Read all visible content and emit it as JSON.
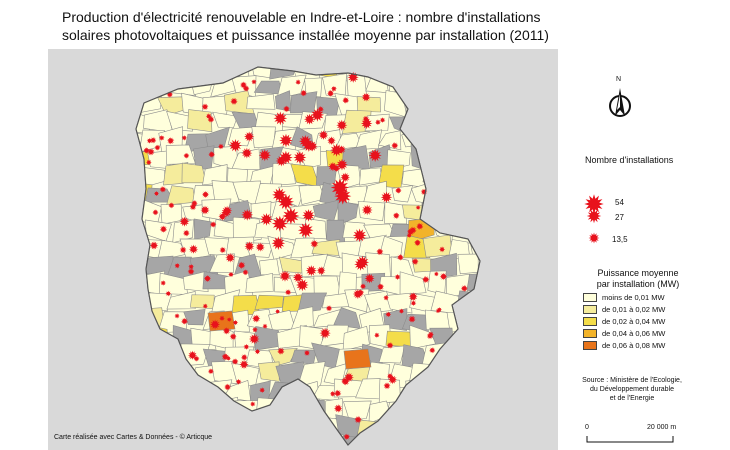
{
  "title": {
    "line1": "Production d'électricité renouvelable en Indre-et-Loire : nombre d'installations",
    "line2": "solaires photovoltaiques et puissance installée moyenne par installation (2011)"
  },
  "credit": "Carte réalisée avec Cartes & Données - © Articque",
  "north_label": "N",
  "legend_count": {
    "title": "Nombre d'installations",
    "items": [
      {
        "label": "54",
        "value": 54
      },
      {
        "label": "27",
        "value": 27
      },
      {
        "label": "13,5",
        "value": 13.5
      }
    ],
    "symbol_color": "#e8121c"
  },
  "legend_power": {
    "title_line1": "Puissance moyenne",
    "title_line2": "par installation (MW)",
    "classes": [
      {
        "label": "moins de 0,01 MW",
        "color": "#ffffdc"
      },
      {
        "label": "de 0,01 à 0,02 MW",
        "color": "#f5ec9c"
      },
      {
        "label": "de 0,02 à 0,04 MW",
        "color": "#f4dd4a"
      },
      {
        "label": "de 0,04 à 0,06 MW",
        "color": "#f2b32a"
      },
      {
        "label": "de 0,06 à 0,08 MW",
        "color": "#e8741b"
      }
    ],
    "no_data_color": "#a6a6a6"
  },
  "source": {
    "line1": "Source : Ministère de l'Ecologie,",
    "line2": "du Développement durable",
    "line3": "et de l'Energie"
  },
  "scale": {
    "left": "0",
    "right": "20 000 m"
  }
}
